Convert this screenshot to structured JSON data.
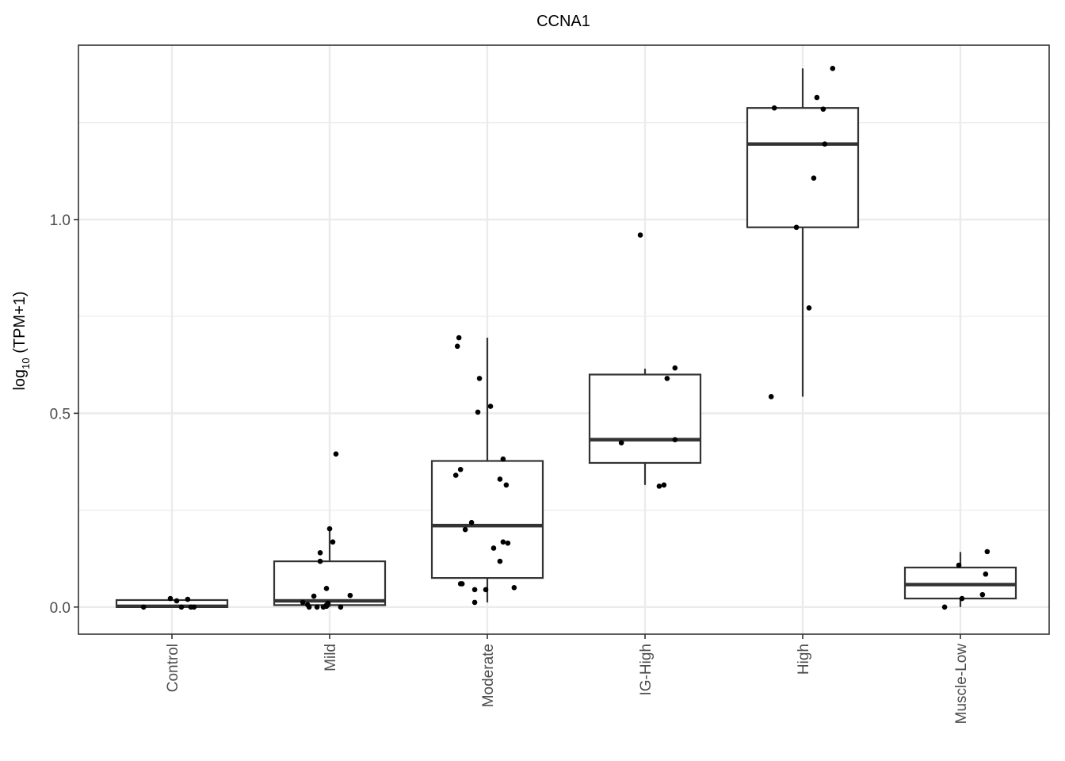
{
  "chart_data": {
    "type": "boxplot",
    "title": "CCNA1",
    "xlabel": "",
    "ylabel": {
      "prefix": "log",
      "subscript": "10",
      "suffix": " (TPM+1)"
    },
    "ylim": [
      -0.07,
      1.45
    ],
    "yticks": [
      0.0,
      0.5,
      1.0
    ],
    "ytick_labels": [
      "0.0",
      "0.5",
      "1.0"
    ],
    "grid": true,
    "categories": [
      "Control",
      "Mild",
      "Moderate",
      "IG-High",
      "High",
      "Muscle-Low"
    ],
    "boxes": [
      {
        "category": "Control",
        "q1": 0.0,
        "median": 0.002,
        "q3": 0.018,
        "whisker_low": 0.0,
        "whisker_high": 0.02
      },
      {
        "category": "Mild",
        "q1": 0.005,
        "median": 0.016,
        "q3": 0.118,
        "whisker_low": 0.0,
        "whisker_high": 0.2
      },
      {
        "category": "Moderate",
        "q1": 0.075,
        "median": 0.21,
        "q3": 0.377,
        "whisker_low": 0.012,
        "whisker_high": 0.695
      },
      {
        "category": "IG-High",
        "q1": 0.372,
        "median": 0.432,
        "q3": 0.6,
        "whisker_low": 0.315,
        "whisker_high": 0.615
      },
      {
        "category": "High",
        "q1": 0.98,
        "median": 1.195,
        "q3": 1.288,
        "whisker_low": 0.543,
        "whisker_high": 1.39
      },
      {
        "category": "Muscle-Low",
        "q1": 0.022,
        "median": 0.058,
        "q3": 0.102,
        "whisker_low": 0.0,
        "whisker_high": 0.142
      }
    ],
    "points": [
      {
        "category": "Control",
        "offset": -0.18,
        "value": 0.0
      },
      {
        "category": "Control",
        "offset": -0.01,
        "value": 0.022
      },
      {
        "category": "Control",
        "offset": 0.03,
        "value": 0.016
      },
      {
        "category": "Control",
        "offset": 0.06,
        "value": 0.0
      },
      {
        "category": "Control",
        "offset": 0.1,
        "value": 0.02
      },
      {
        "category": "Control",
        "offset": 0.12,
        "value": 0.0
      },
      {
        "category": "Control",
        "offset": 0.14,
        "value": 0.0
      },
      {
        "category": "Mild",
        "offset": -0.17,
        "value": 0.012
      },
      {
        "category": "Mild",
        "offset": -0.14,
        "value": 0.006
      },
      {
        "category": "Mild",
        "offset": -0.13,
        "value": 0.0
      },
      {
        "category": "Mild",
        "offset": -0.1,
        "value": 0.028
      },
      {
        "category": "Mild",
        "offset": -0.08,
        "value": 0.0
      },
      {
        "category": "Mild",
        "offset": -0.06,
        "value": 0.14
      },
      {
        "category": "Mild",
        "offset": -0.06,
        "value": 0.118
      },
      {
        "category": "Mild",
        "offset": -0.04,
        "value": 0.0
      },
      {
        "category": "Mild",
        "offset": -0.02,
        "value": 0.002
      },
      {
        "category": "Mild",
        "offset": -0.02,
        "value": 0.048
      },
      {
        "category": "Mild",
        "offset": -0.01,
        "value": 0.01
      },
      {
        "category": "Mild",
        "offset": -0.02,
        "value": 0.005
      },
      {
        "category": "Mild",
        "offset": 0.0,
        "value": 0.202
      },
      {
        "category": "Mild",
        "offset": 0.02,
        "value": 0.168
      },
      {
        "category": "Mild",
        "offset": 0.04,
        "value": 0.395
      },
      {
        "category": "Mild",
        "offset": 0.07,
        "value": 0.0
      },
      {
        "category": "Mild",
        "offset": 0.13,
        "value": 0.03
      },
      {
        "category": "Moderate",
        "offset": -0.2,
        "value": 0.34
      },
      {
        "category": "Moderate",
        "offset": -0.19,
        "value": 0.673
      },
      {
        "category": "Moderate",
        "offset": -0.18,
        "value": 0.695
      },
      {
        "category": "Moderate",
        "offset": -0.17,
        "value": 0.06
      },
      {
        "category": "Moderate",
        "offset": -0.17,
        "value": 0.355
      },
      {
        "category": "Moderate",
        "offset": -0.16,
        "value": 0.06
      },
      {
        "category": "Moderate",
        "offset": -0.14,
        "value": 0.2
      },
      {
        "category": "Moderate",
        "offset": -0.1,
        "value": 0.218
      },
      {
        "category": "Moderate",
        "offset": -0.08,
        "value": 0.012
      },
      {
        "category": "Moderate",
        "offset": -0.08,
        "value": 0.045
      },
      {
        "category": "Moderate",
        "offset": -0.06,
        "value": 0.503
      },
      {
        "category": "Moderate",
        "offset": -0.05,
        "value": 0.59
      },
      {
        "category": "Moderate",
        "offset": -0.01,
        "value": 0.045
      },
      {
        "category": "Moderate",
        "offset": 0.02,
        "value": 0.518
      },
      {
        "category": "Moderate",
        "offset": 0.04,
        "value": 0.152
      },
      {
        "category": "Moderate",
        "offset": 0.08,
        "value": 0.118
      },
      {
        "category": "Moderate",
        "offset": 0.08,
        "value": 0.33
      },
      {
        "category": "Moderate",
        "offset": 0.1,
        "value": 0.168
      },
      {
        "category": "Moderate",
        "offset": 0.1,
        "value": 0.382
      },
      {
        "category": "Moderate",
        "offset": 0.12,
        "value": 0.315
      },
      {
        "category": "Moderate",
        "offset": 0.13,
        "value": 0.165
      },
      {
        "category": "Moderate",
        "offset": 0.17,
        "value": 0.05
      },
      {
        "category": "IG-High",
        "offset": -0.15,
        "value": 0.424
      },
      {
        "category": "IG-High",
        "offset": -0.03,
        "value": 0.96
      },
      {
        "category": "IG-High",
        "offset": 0.09,
        "value": 0.312
      },
      {
        "category": "IG-High",
        "offset": 0.12,
        "value": 0.315
      },
      {
        "category": "IG-High",
        "offset": 0.14,
        "value": 0.59
      },
      {
        "category": "IG-High",
        "offset": 0.19,
        "value": 0.432
      },
      {
        "category": "IG-High",
        "offset": 0.19,
        "value": 0.617
      },
      {
        "category": "High",
        "offset": -0.2,
        "value": 0.543
      },
      {
        "category": "High",
        "offset": -0.18,
        "value": 1.288
      },
      {
        "category": "High",
        "offset": -0.04,
        "value": 0.98
      },
      {
        "category": "High",
        "offset": 0.04,
        "value": 0.772
      },
      {
        "category": "High",
        "offset": 0.07,
        "value": 1.107
      },
      {
        "category": "High",
        "offset": 0.09,
        "value": 1.315
      },
      {
        "category": "High",
        "offset": 0.13,
        "value": 1.285
      },
      {
        "category": "High",
        "offset": 0.14,
        "value": 1.195
      },
      {
        "category": "High",
        "offset": 0.19,
        "value": 1.39
      },
      {
        "category": "Muscle-Low",
        "offset": -0.1,
        "value": 0.0
      },
      {
        "category": "Muscle-Low",
        "offset": -0.01,
        "value": 0.108
      },
      {
        "category": "Muscle-Low",
        "offset": 0.01,
        "value": 0.022
      },
      {
        "category": "Muscle-Low",
        "offset": 0.14,
        "value": 0.032
      },
      {
        "category": "Muscle-Low",
        "offset": 0.16,
        "value": 0.085
      },
      {
        "category": "Muscle-Low",
        "offset": 0.17,
        "value": 0.143
      }
    ]
  }
}
